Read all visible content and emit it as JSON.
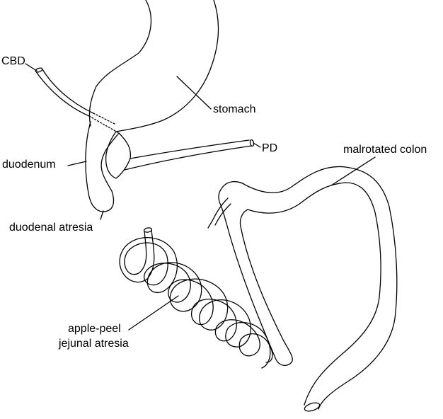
{
  "diagram": {
    "labels": {
      "cbd": "CBD",
      "stomach": "stomach",
      "pd": "PD",
      "duodenum": "duodenum",
      "duodenal_atresia": "duodenal atresia",
      "malrotated_colon": "malrotated colon",
      "apple_peel_line1": "apple-peel",
      "apple_peel_line2": "jejunal atresia"
    },
    "colors": {
      "stroke": "#000000",
      "fill": "#ffffff"
    }
  }
}
